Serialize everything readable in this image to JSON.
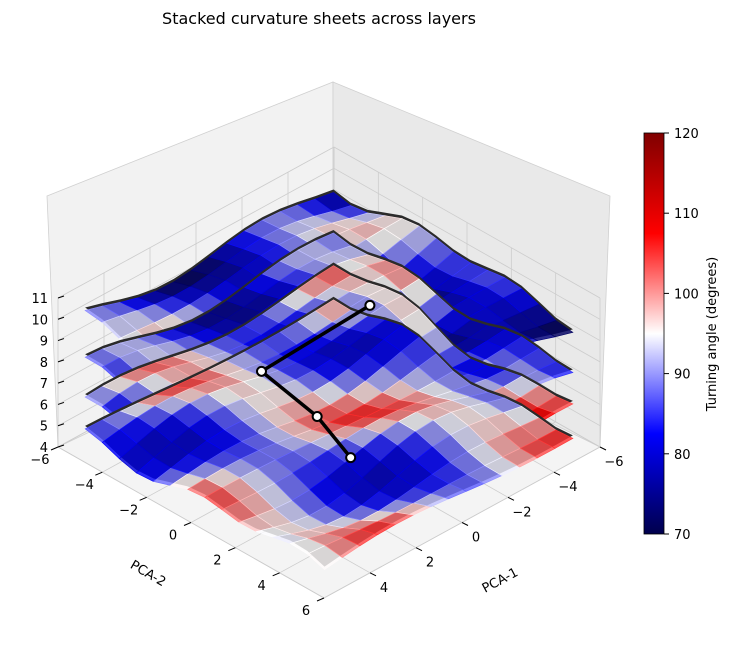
{
  "chart_data": {
    "type": "surface3d",
    "title": "Stacked curvature sheets across layers",
    "xlabel": "PCA-1",
    "ylabel": "PCA-2",
    "zlabel": "",
    "xlim": [
      -6,
      6
    ],
    "ylim": [
      -6,
      6
    ],
    "zlim": [
      4,
      11
    ],
    "x_ticks": [
      "−6",
      "−4",
      "−2",
      "0",
      "2",
      "4"
    ],
    "y_ticks": [
      "−6",
      "−4",
      "−2",
      "0",
      "2",
      "4",
      "6"
    ],
    "z_ticks": [
      "4",
      "5",
      "6",
      "7",
      "8",
      "9",
      "10",
      "11"
    ],
    "grid": true,
    "colormap": "seismic",
    "colorbar": {
      "label": "Turning angle (degrees)",
      "range": [
        70,
        120
      ],
      "ticks": [
        "70",
        "80",
        "90",
        "100",
        "110",
        "120"
      ]
    },
    "sheets": [
      {
        "z": 4.6,
        "dominant_angle": 92
      },
      {
        "z": 6.0,
        "dominant_angle": 95
      },
      {
        "z": 7.6,
        "dominant_angle": 88
      },
      {
        "z": 9.9,
        "dominant_angle": 84
      }
    ],
    "trajectory": [
      {
        "x": 0.6,
        "y": 1.6,
        "z": 4.8
      },
      {
        "x": 0.9,
        "y": 0.4,
        "z": 6.2
      },
      {
        "x": 1.2,
        "y": -1.8,
        "z": 7.2
      },
      {
        "x": -1.2,
        "y": 0.6,
        "z": 10.3
      }
    ],
    "colors": {
      "trajectory": "#000000",
      "sheet_shadow": "#2b2b2b",
      "pane": "#f2f2f2",
      "grid": "#cccccc"
    }
  }
}
